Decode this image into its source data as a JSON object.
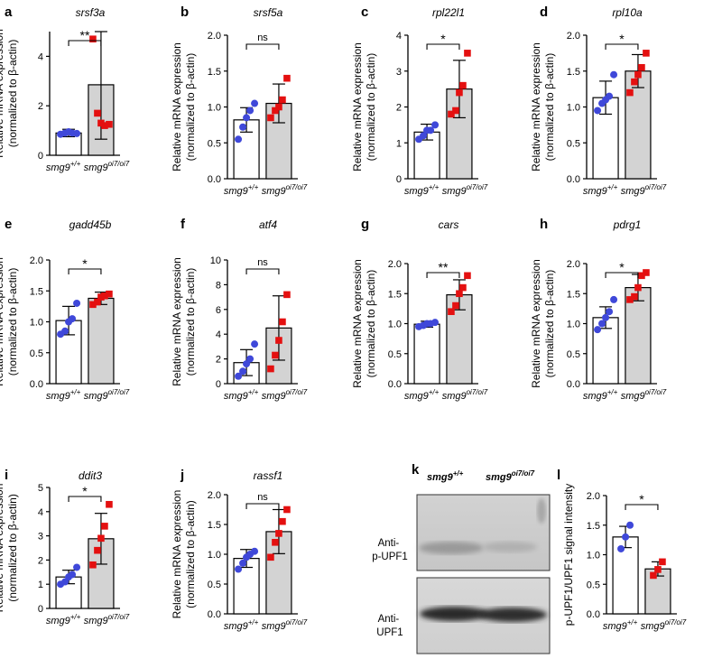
{
  "colors": {
    "wt_point": "#3f48d9",
    "mut_point": "#e41010",
    "wt_bar": "#ffffff",
    "mut_bar": "#d3d3d3",
    "axis": "#000000"
  },
  "ylabel_line1": "Relative mRNA expression",
  "ylabel_line2": "(normalized to β-actin)",
  "x_categories": [
    {
      "base": "smg9",
      "sup": "+/+"
    },
    {
      "base": "smg9",
      "sup": "oi7/oi7"
    }
  ],
  "chart_data": [
    {
      "panel": "a",
      "type": "bar",
      "title": "srsf3a",
      "ylim": [
        0,
        5
      ],
      "yticks": [
        0,
        2,
        4
      ],
      "significance": "**",
      "series": [
        {
          "mean": 0.9,
          "sd": 0.15,
          "points": [
            0.85,
            0.9,
            0.95,
            0.9,
            0.88
          ]
        },
        {
          "mean": 2.85,
          "sd": 2.2,
          "points": [
            4.7,
            1.7,
            1.3,
            1.2,
            1.25
          ]
        }
      ]
    },
    {
      "panel": "b",
      "type": "bar",
      "title": "srsf5a",
      "ylim": [
        0,
        2.0
      ],
      "yticks": [
        0,
        0.5,
        1.0,
        1.5,
        2.0
      ],
      "significance": "ns",
      "series": [
        {
          "mean": 0.82,
          "sd": 0.17,
          "points": [
            0.55,
            0.72,
            0.85,
            0.95,
            1.05
          ]
        },
        {
          "mean": 1.05,
          "sd": 0.27,
          "points": [
            0.85,
            0.95,
            1.0,
            1.1,
            1.4
          ]
        }
      ]
    },
    {
      "panel": "c",
      "type": "bar",
      "title": "rpl22l1",
      "ylim": [
        0,
        4
      ],
      "yticks": [
        0,
        1,
        2,
        3,
        4
      ],
      "significance": "*",
      "series": [
        {
          "mean": 1.3,
          "sd": 0.22,
          "points": [
            1.1,
            1.2,
            1.35,
            1.35,
            1.5
          ]
        },
        {
          "mean": 2.5,
          "sd": 0.8,
          "points": [
            1.8,
            1.9,
            2.4,
            2.6,
            3.5
          ]
        }
      ]
    },
    {
      "panel": "d",
      "type": "bar",
      "title": "rpl10a",
      "ylim": [
        0,
        2.0
      ],
      "yticks": [
        0,
        0.5,
        1.0,
        1.5,
        2.0
      ],
      "significance": "*",
      "series": [
        {
          "mean": 1.13,
          "sd": 0.23,
          "points": [
            0.95,
            1.05,
            1.1,
            1.15,
            1.45
          ]
        },
        {
          "mean": 1.5,
          "sd": 0.23,
          "points": [
            1.2,
            1.35,
            1.45,
            1.55,
            1.75
          ]
        }
      ]
    },
    {
      "panel": "e",
      "type": "bar",
      "title": "gadd45b",
      "ylim": [
        0,
        2.0
      ],
      "yticks": [
        0,
        0.5,
        1.0,
        1.5,
        2.0
      ],
      "significance": "*",
      "series": [
        {
          "mean": 1.02,
          "sd": 0.23,
          "points": [
            0.8,
            0.85,
            1.0,
            1.05,
            1.3
          ]
        },
        {
          "mean": 1.38,
          "sd": 0.1,
          "points": [
            1.28,
            1.32,
            1.4,
            1.42,
            1.45
          ]
        }
      ]
    },
    {
      "panel": "f",
      "type": "bar",
      "title": "atf4",
      "ylim": [
        0,
        10
      ],
      "yticks": [
        0,
        2,
        4,
        6,
        8,
        10
      ],
      "significance": "ns",
      "series": [
        {
          "mean": 1.7,
          "sd": 1.05,
          "points": [
            0.6,
            1.0,
            1.6,
            2.0,
            3.2
          ]
        },
        {
          "mean": 4.5,
          "sd": 2.6,
          "points": [
            1.2,
            2.3,
            3.5,
            5.0,
            7.2
          ]
        }
      ]
    },
    {
      "panel": "g",
      "type": "bar",
      "title": "cars",
      "ylim": [
        0,
        2.0
      ],
      "yticks": [
        0,
        0.5,
        1.0,
        1.5,
        2.0
      ],
      "significance": "**",
      "series": [
        {
          "mean": 0.99,
          "sd": 0.05,
          "points": [
            0.95,
            0.97,
            1.0,
            1.0,
            1.02
          ]
        },
        {
          "mean": 1.48,
          "sd": 0.25,
          "points": [
            1.2,
            1.3,
            1.5,
            1.6,
            1.8
          ]
        }
      ]
    },
    {
      "panel": "h",
      "type": "bar",
      "title": "pdrg1",
      "ylim": [
        0,
        2.0
      ],
      "yticks": [
        0,
        0.5,
        1.0,
        1.5,
        2.0
      ],
      "significance": "*",
      "series": [
        {
          "mean": 1.1,
          "sd": 0.18,
          "points": [
            0.9,
            1.0,
            1.1,
            1.2,
            1.4
          ]
        },
        {
          "mean": 1.6,
          "sd": 0.22,
          "points": [
            1.4,
            1.45,
            1.6,
            1.8,
            1.85
          ]
        }
      ]
    },
    {
      "panel": "i",
      "type": "bar",
      "title": "ddit3",
      "ylim": [
        0,
        5
      ],
      "yticks": [
        0,
        1,
        2,
        3,
        4,
        5
      ],
      "significance": "*",
      "series": [
        {
          "mean": 1.3,
          "sd": 0.28,
          "points": [
            1.0,
            1.1,
            1.3,
            1.4,
            1.7
          ]
        },
        {
          "mean": 2.88,
          "sd": 1.05,
          "points": [
            1.8,
            2.4,
            2.9,
            3.4,
            4.3
          ]
        }
      ]
    },
    {
      "panel": "j",
      "type": "bar",
      "title": "rassf1",
      "ylim": [
        0,
        2.0
      ],
      "yticks": [
        0,
        0.5,
        1.0,
        1.5,
        2.0
      ],
      "significance": "ns",
      "series": [
        {
          "mean": 0.93,
          "sd": 0.15,
          "points": [
            0.75,
            0.85,
            0.95,
            1.0,
            1.05
          ]
        },
        {
          "mean": 1.38,
          "sd": 0.37,
          "points": [
            0.95,
            1.2,
            1.35,
            1.55,
            1.75
          ]
        }
      ]
    },
    {
      "panel": "l",
      "type": "bar",
      "title": "",
      "ylabel": "p-UPF1/UPF1 signal intensity",
      "ylim": [
        0,
        2.0
      ],
      "yticks": [
        0,
        0.5,
        1.0,
        1.5,
        2.0
      ],
      "significance": "*",
      "series": [
        {
          "mean": 1.3,
          "sd": 0.18,
          "points": [
            1.1,
            1.3,
            1.5
          ]
        },
        {
          "mean": 0.76,
          "sd": 0.12,
          "points": [
            0.65,
            0.75,
            0.88
          ]
        }
      ]
    }
  ],
  "blot": {
    "panel": "k",
    "columns": [
      {
        "base": "smg9",
        "sup": "+/+"
      },
      {
        "base": "smg9",
        "sup": "oi7/oi7"
      }
    ],
    "rows": [
      {
        "label_line1": "Anti-",
        "label_line2": "p-UPF1"
      },
      {
        "label_line1": "Anti-",
        "label_line2": "UPF1"
      }
    ]
  }
}
